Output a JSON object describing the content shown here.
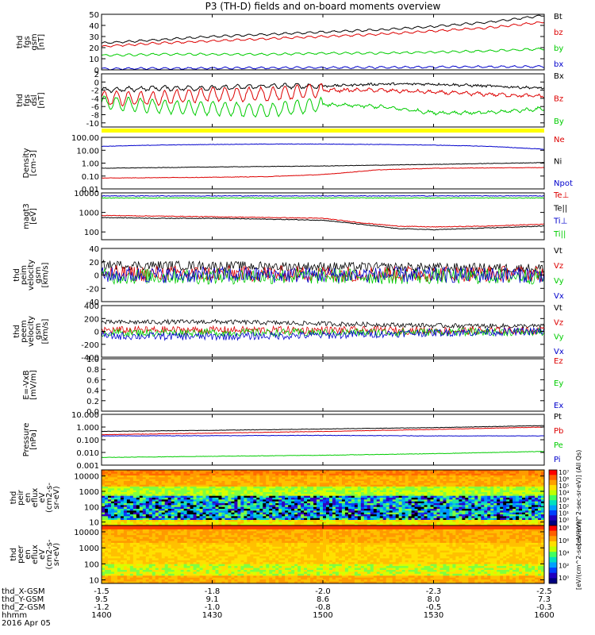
{
  "title": "P3 (TH-D) fields and on-board moments overview",
  "date": "2016 Apr 05",
  "chart_data": [
    {
      "type": "line",
      "ylabel": [
        "thd",
        "fgs",
        "gsm",
        "[nT]"
      ],
      "ylim": [
        0,
        50
      ],
      "yticks": [
        "50",
        "40",
        "30",
        "20",
        "10",
        "0"
      ],
      "legend": [
        {
          "name": "Bt",
          "color": "#000000"
        },
        {
          "name": "bz",
          "color": "#dd0000"
        },
        {
          "name": "by",
          "color": "#00cc00"
        },
        {
          "name": "bx",
          "color": "#0000cc"
        }
      ],
      "series": [
        {
          "name": "Bt",
          "color": "#000000",
          "x": [
            1400,
            1415,
            1430,
            1445,
            1500,
            1515,
            1530,
            1545,
            1600
          ],
          "y": [
            24,
            27,
            30,
            32,
            34,
            36,
            39,
            43,
            49
          ]
        },
        {
          "name": "bz",
          "color": "#dd0000",
          "x": [
            1400,
            1415,
            1430,
            1445,
            1500,
            1515,
            1530,
            1545,
            1600
          ],
          "y": [
            21,
            24,
            26,
            28,
            30,
            32,
            35,
            38,
            43
          ]
        },
        {
          "name": "by",
          "color": "#00cc00",
          "x": [
            1400,
            1415,
            1430,
            1445,
            1500,
            1515,
            1530,
            1545,
            1600
          ],
          "y": [
            13,
            14,
            14,
            14,
            15,
            15,
            16,
            17,
            19
          ]
        },
        {
          "name": "bx",
          "color": "#0000cc",
          "x": [
            1400,
            1430,
            1500,
            1530,
            1600
          ],
          "y": [
            1,
            1.5,
            2,
            2.5,
            3
          ]
        }
      ]
    },
    {
      "type": "line",
      "ylabel": [
        "thd",
        "fgs",
        "dsl",
        "[nT]"
      ],
      "ylim": [
        -11,
        2
      ],
      "yticks": [
        "2",
        "0",
        "-2",
        "-4",
        "-6",
        "-8",
        "-10"
      ],
      "legend": [
        {
          "name": "Bx",
          "color": "#000000"
        },
        {
          "name": "Bz",
          "color": "#dd0000"
        },
        {
          "name": "By",
          "color": "#00cc00"
        }
      ],
      "series": [
        {
          "name": "Bx",
          "color": "#000000",
          "x": [
            1400,
            1415,
            1430,
            1445,
            1500,
            1515,
            1530,
            1545,
            1600
          ],
          "y": [
            -2,
            -1.5,
            -1.5,
            -1,
            -1,
            -0.5,
            -0.5,
            -1,
            -1.5
          ]
        },
        {
          "name": "Bz",
          "color": "#dd0000",
          "x": [
            1400,
            1415,
            1430,
            1445,
            1500,
            1515,
            1530,
            1545,
            1600
          ],
          "y": [
            -4,
            -4,
            -3,
            -3,
            -2,
            -2,
            -2.5,
            -3,
            -3.5
          ]
        },
        {
          "name": "By",
          "color": "#00cc00",
          "x": [
            1400,
            1415,
            1430,
            1445,
            1500,
            1515,
            1530,
            1545,
            1600
          ],
          "y": [
            -5,
            -6,
            -6.5,
            -7,
            -5.5,
            -6,
            -7.5,
            -7.5,
            -6.5
          ]
        }
      ]
    },
    {
      "type": "line",
      "ylabel": [
        "Density",
        "[cm-3]"
      ],
      "ylim": [
        0.01,
        100
      ],
      "yscale": "log",
      "yticks": [
        "100.00",
        "10.00",
        "1.00",
        "0.10",
        "0.01"
      ],
      "legend": [
        {
          "name": "Ne",
          "color": "#dd0000"
        },
        {
          "name": "Ni",
          "color": "#000000"
        },
        {
          "name": "Npot",
          "color": "#0000cc"
        }
      ],
      "series": [
        {
          "name": "Npot",
          "color": "#0000cc",
          "x": [
            1400,
            1415,
            1430,
            1445,
            1500,
            1515,
            1530,
            1545,
            1600
          ],
          "y": [
            20,
            25,
            28,
            30,
            30,
            28,
            25,
            20,
            12
          ]
        },
        {
          "name": "Ni",
          "color": "#000000",
          "x": [
            1400,
            1430,
            1500,
            1530,
            1600
          ],
          "y": [
            0.4,
            0.5,
            0.6,
            0.8,
            1.1
          ]
        },
        {
          "name": "Ne",
          "color": "#dd0000",
          "x": [
            1400,
            1430,
            1445,
            1500,
            1515,
            1530,
            1600
          ],
          "y": [
            0.07,
            0.08,
            0.09,
            0.13,
            0.3,
            0.4,
            0.45
          ]
        }
      ]
    },
    {
      "type": "line",
      "ylabel": [
        "magt3",
        "[eV]"
      ],
      "ylim": [
        40,
        10000
      ],
      "yscale": "log",
      "yticks": [
        "10000",
        "1000",
        "100"
      ],
      "legend": [
        {
          "name": "Te⊥",
          "color": "#dd0000"
        },
        {
          "name": "Te||",
          "color": "#000000"
        },
        {
          "name": "Ti⊥",
          "color": "#0000cc"
        },
        {
          "name": "Ti||",
          "color": "#00cc00"
        }
      ],
      "series": [
        {
          "name": "Ti⊥",
          "color": "#0000cc",
          "x": [
            1400,
            1430,
            1500,
            1530,
            1600
          ],
          "y": [
            7000,
            7000,
            7000,
            7000,
            7000
          ]
        },
        {
          "name": "Ti||",
          "color": "#00cc00",
          "x": [
            1400,
            1430,
            1500,
            1530,
            1600
          ],
          "y": [
            5500,
            5500,
            5500,
            5500,
            5500
          ]
        },
        {
          "name": "Te⊥",
          "color": "#dd0000",
          "x": [
            1400,
            1415,
            1430,
            1445,
            1500,
            1510,
            1520,
            1530,
            1545,
            1600
          ],
          "y": [
            700,
            650,
            600,
            550,
            500,
            300,
            200,
            180,
            200,
            250
          ]
        },
        {
          "name": "Te||",
          "color": "#000000",
          "x": [
            1400,
            1415,
            1430,
            1445,
            1500,
            1510,
            1520,
            1530,
            1545,
            1600
          ],
          "y": [
            550,
            500,
            500,
            450,
            400,
            250,
            150,
            130,
            160,
            200
          ]
        }
      ]
    },
    {
      "type": "line",
      "ylabel": [
        "thd",
        "peim",
        "velocity",
        "gsm",
        "[km/s]"
      ],
      "ylim": [
        -40,
        40
      ],
      "yticks": [
        "40",
        "20",
        "0",
        "-20",
        "-40"
      ],
      "legend": [
        {
          "name": "Vt",
          "color": "#000000"
        },
        {
          "name": "Vz",
          "color": "#dd0000"
        },
        {
          "name": "Vy",
          "color": "#00cc00"
        },
        {
          "name": "Vx",
          "color": "#0000cc"
        }
      ],
      "series": [
        {
          "name": "Vt",
          "color": "#000000",
          "x": [
            1400,
            1600
          ],
          "y": [
            15,
            10
          ]
        },
        {
          "name": "Vz",
          "color": "#dd0000",
          "x": [
            1400,
            1600
          ],
          "y": [
            2,
            2
          ]
        },
        {
          "name": "Vy",
          "color": "#00cc00",
          "x": [
            1400,
            1600
          ],
          "y": [
            -2,
            -2
          ]
        },
        {
          "name": "Vx",
          "color": "#0000cc",
          "x": [
            1400,
            1600
          ],
          "y": [
            0,
            0
          ]
        }
      ]
    },
    {
      "type": "line",
      "ylabel": [
        "thd",
        "peem",
        "velocity",
        "gsm",
        "[km/s]"
      ],
      "ylim": [
        -400,
        400
      ],
      "yticks": [
        "400",
        "200",
        "0",
        "-200",
        "-400"
      ],
      "legend": [
        {
          "name": "Vt",
          "color": "#000000"
        },
        {
          "name": "Vz",
          "color": "#dd0000"
        },
        {
          "name": "Vy",
          "color": "#00cc00"
        },
        {
          "name": "Vx",
          "color": "#0000cc"
        }
      ],
      "series": [
        {
          "name": "Vt",
          "color": "#000000",
          "x": [
            1400,
            1430,
            1500,
            1530,
            1600
          ],
          "y": [
            140,
            150,
            120,
            90,
            80
          ]
        },
        {
          "name": "Vz",
          "color": "#dd0000",
          "x": [
            1400,
            1430,
            1500,
            1530,
            1600
          ],
          "y": [
            20,
            20,
            20,
            10,
            10
          ]
        },
        {
          "name": "Vy",
          "color": "#00cc00",
          "x": [
            1400,
            1430,
            1500,
            1530,
            1600
          ],
          "y": [
            -20,
            -20,
            -20,
            -10,
            -10
          ]
        },
        {
          "name": "Vx",
          "color": "#0000cc",
          "x": [
            1400,
            1430,
            1500,
            1530,
            1600
          ],
          "y": [
            -70,
            -80,
            -60,
            -20,
            0
          ]
        }
      ]
    },
    {
      "type": "line",
      "ylabel": [
        "E=-VxB",
        "[mV/m]"
      ],
      "ylim": [
        0,
        1
      ],
      "yticks": [
        "1.0",
        "0.8",
        "0.6",
        "0.4",
        "0.2",
        "0.0"
      ],
      "legend": [
        {
          "name": "Ez",
          "color": "#dd0000"
        },
        {
          "name": "Ey",
          "color": "#00cc00"
        },
        {
          "name": "Ex",
          "color": "#0000cc"
        }
      ],
      "series": []
    },
    {
      "type": "line",
      "ylabel": [
        "Pressure",
        "[nPa]"
      ],
      "ylim": [
        0.001,
        10
      ],
      "yscale": "log",
      "yticks": [
        "10.000",
        "1.000",
        "0.100",
        "0.010",
        "0.001"
      ],
      "legend": [
        {
          "name": "Pt",
          "color": "#000000"
        },
        {
          "name": "Pb",
          "color": "#dd0000"
        },
        {
          "name": "Pe",
          "color": "#00cc00"
        },
        {
          "name": "Pi",
          "color": "#0000cc"
        }
      ],
      "series": [
        {
          "name": "Pt",
          "color": "#000000",
          "x": [
            1400,
            1430,
            1500,
            1530,
            1600
          ],
          "y": [
            0.45,
            0.55,
            0.7,
            0.9,
            1.3
          ]
        },
        {
          "name": "Pb",
          "color": "#dd0000",
          "x": [
            1400,
            1430,
            1500,
            1530,
            1600
          ],
          "y": [
            0.25,
            0.33,
            0.45,
            0.65,
            1.0
          ]
        },
        {
          "name": "Pi",
          "color": "#0000cc",
          "x": [
            1400,
            1430,
            1500,
            1530,
            1600
          ],
          "y": [
            0.2,
            0.21,
            0.22,
            0.2,
            0.2
          ]
        },
        {
          "name": "Pe",
          "color": "#00cc00",
          "x": [
            1400,
            1430,
            1500,
            1530,
            1600
          ],
          "y": [
            0.004,
            0.005,
            0.006,
            0.008,
            0.012
          ]
        }
      ]
    },
    {
      "type": "heatmap",
      "ylabel": [
        "thd",
        "peir",
        "en",
        "eflux",
        "eV",
        "(cm2-s-",
        "sr-eV)"
      ],
      "ylim": [
        6,
        25000
      ],
      "yscale": "log",
      "yticks": [
        "10000",
        "1000",
        "100",
        "10"
      ],
      "colorbar": {
        "ticks": [
          "10⁷",
          "10⁶",
          "10⁵",
          "10⁴",
          "10³",
          "10²",
          "10¹",
          "10⁰"
        ],
        "label": "[eV/(cm^2-sec-sr-eV)] (All Qs)"
      }
    },
    {
      "type": "heatmap",
      "ylabel": [
        "thd",
        "peer",
        "en",
        "eflux",
        "eV",
        "(cm2-s-",
        "sr-eV)"
      ],
      "ylim": [
        6,
        25000
      ],
      "yscale": "log",
      "yticks": [
        "10000",
        "1000",
        "100",
        "10"
      ],
      "colorbar": {
        "ticks": [
          "10⁸",
          "10⁶",
          "10⁴",
          "10²",
          "10⁰"
        ],
        "label": "[eV/(cm^2-sec-sr-eV)]"
      }
    }
  ],
  "xaxis": {
    "labels": [
      "thd_X-GSM",
      "thd_Y-GSM",
      "thd_Z-GSM",
      "hhmm"
    ],
    "ticks": [
      {
        "x": 1400,
        "values": [
          "-1.5",
          "9.5",
          "-1.2",
          "1400"
        ]
      },
      {
        "x": 1430,
        "values": [
          "-1.8",
          "9.1",
          "-1.0",
          "1430"
        ]
      },
      {
        "x": 1500,
        "values": [
          "-2.0",
          "8.6",
          "-0.8",
          "1500"
        ]
      },
      {
        "x": 1530,
        "values": [
          "-2.3",
          "8.0",
          "-0.5",
          "1530"
        ]
      },
      {
        "x": 1600,
        "values": [
          "-2.5",
          "7.3",
          "-0.3",
          "1600"
        ]
      }
    ]
  }
}
